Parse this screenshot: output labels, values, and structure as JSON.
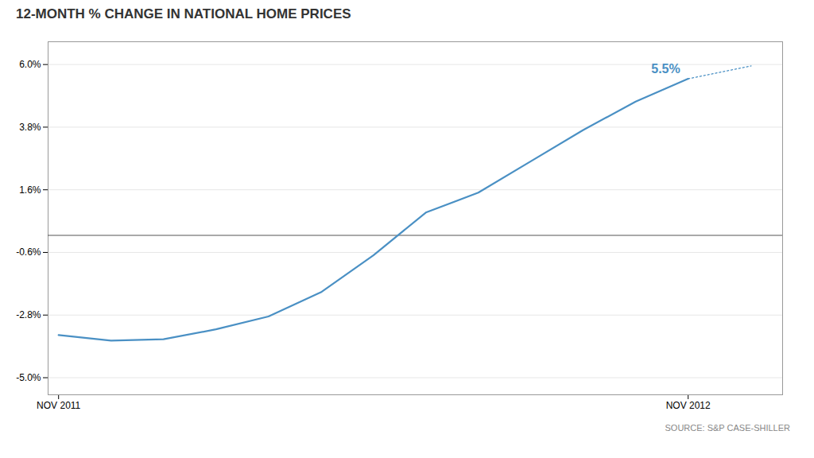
{
  "chart_data": {
    "type": "line",
    "title": "12-MONTH % CHANGE IN NATIONAL HOME PRICES",
    "caption": "SOURCE: S&P CASE-SHILLER",
    "series": [
      {
        "x": [
          0,
          1,
          2,
          3,
          4,
          5,
          6,
          7,
          8,
          9,
          10,
          11,
          12
        ],
        "values": [
          -3.5,
          -3.7,
          -3.65,
          -3.3,
          -2.85,
          -2.0,
          -0.7,
          0.8,
          1.5,
          2.6,
          3.7,
          4.7,
          5.5
        ],
        "color": "#4a90c4",
        "line_style": "solid"
      },
      {
        "x": [
          12.0,
          13.2
        ],
        "values": [
          5.5,
          5.95
        ],
        "color": "#4a90c4",
        "line_style": "dotted"
      }
    ],
    "xlim": [
      -0.2,
      13.8
    ],
    "xticks": [
      {
        "value": 0,
        "label": "NOV 2011"
      },
      {
        "value": 12,
        "label": "NOV 2012"
      }
    ],
    "ylim": [
      -5.6,
      6.8
    ],
    "yticks": [
      {
        "value": -5.0,
        "label": "-5.0%"
      },
      {
        "value": -2.8,
        "label": "-2.8%"
      },
      {
        "value": -0.6,
        "label": "-0.6%"
      },
      {
        "value": 1.6,
        "label": "1.6%"
      },
      {
        "value": 3.8,
        "label": "3.8%"
      },
      {
        "value": 6.0,
        "label": "6.0%"
      }
    ],
    "grid": true,
    "annotations": [
      {
        "text": "5.5%",
        "x": 12,
        "y": 5.5,
        "color": "#4a90c4"
      }
    ]
  }
}
